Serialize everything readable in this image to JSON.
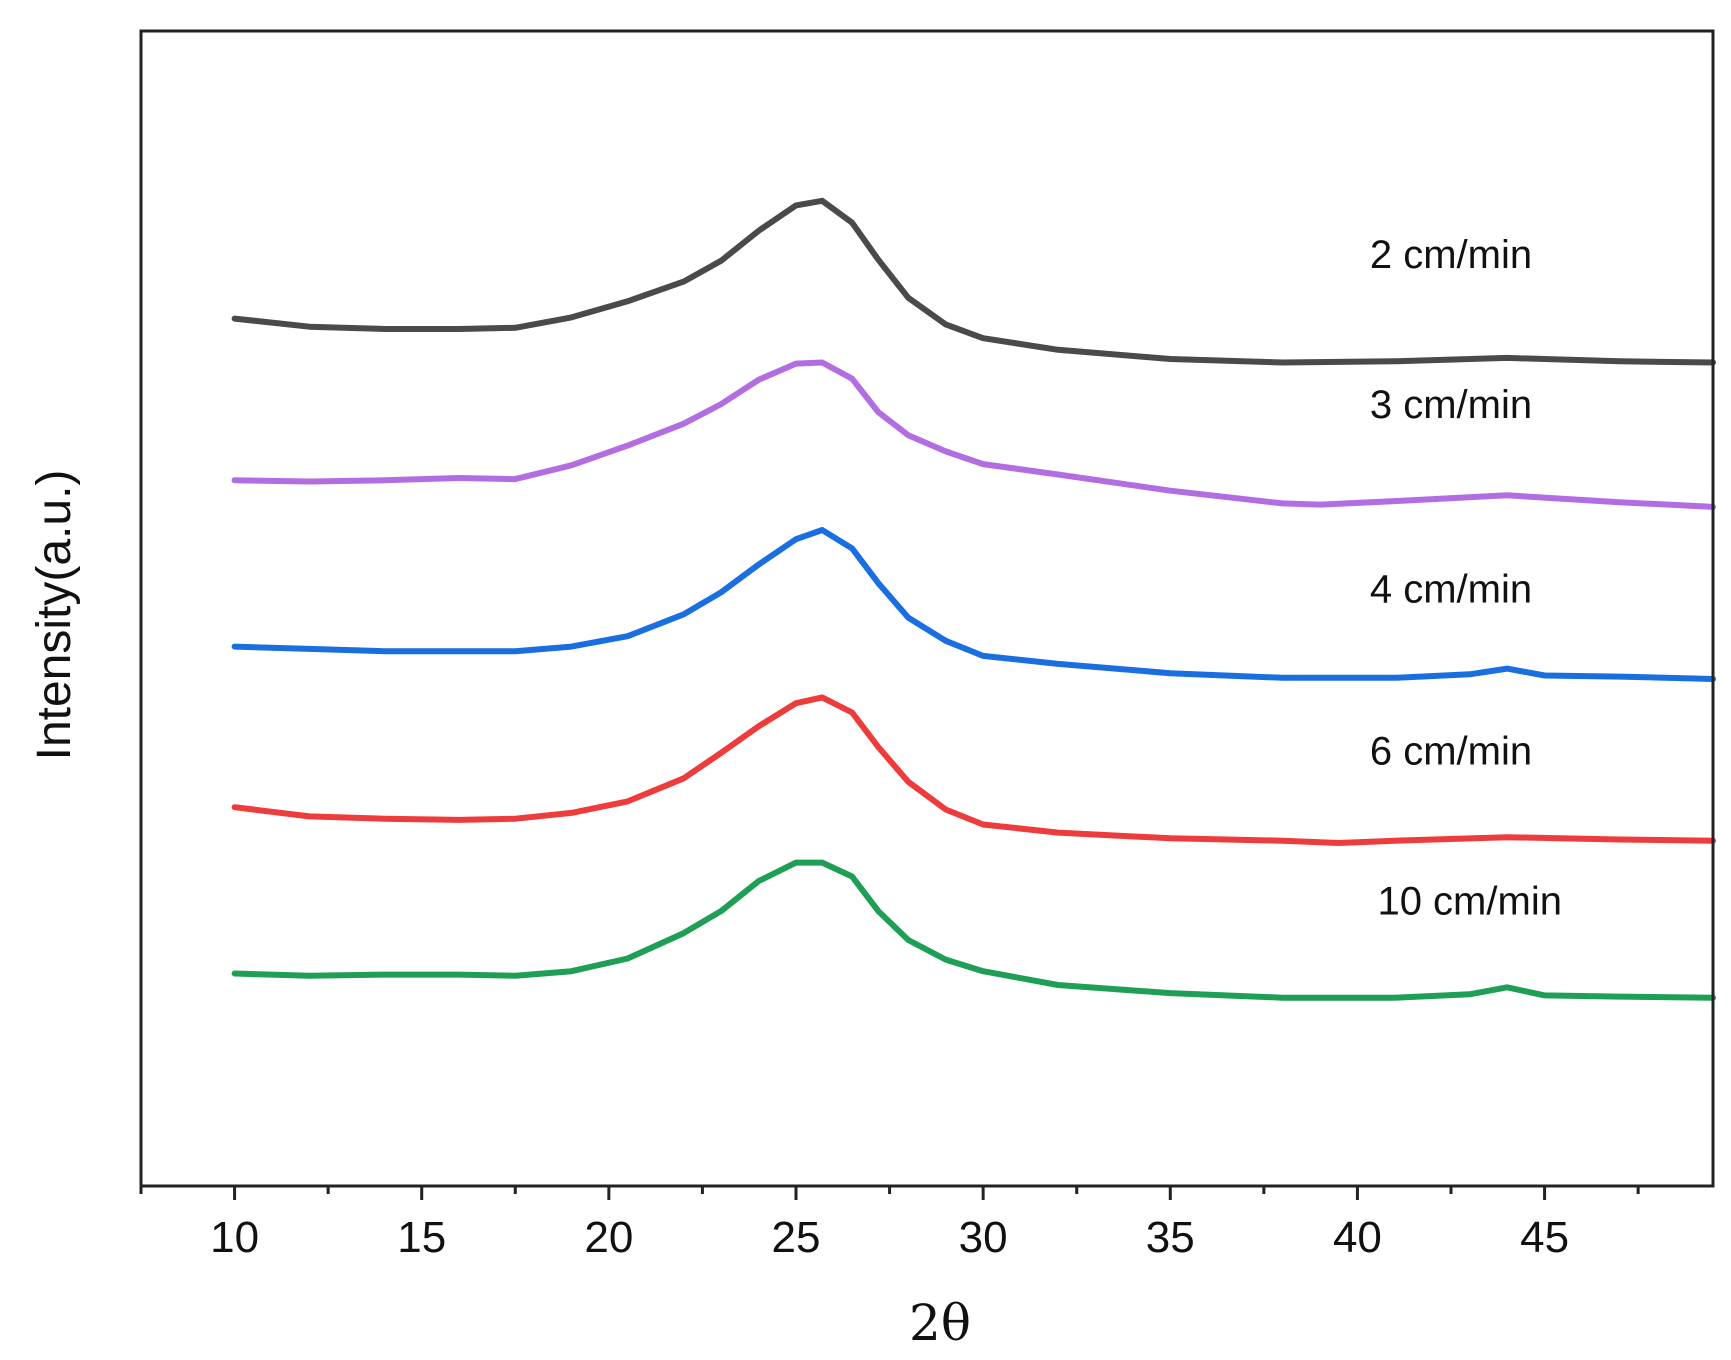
{
  "chart_data": {
    "type": "line",
    "title": "",
    "xlabel": "2θ",
    "ylabel": "Intensity(a.u.)",
    "xlim": [
      7.5,
      49.5
    ],
    "ylim": [
      0,
      100
    ],
    "xticks": [
      10,
      15,
      20,
      25,
      30,
      35,
      40,
      45
    ],
    "xtick_labels": [
      "10",
      "15",
      "20",
      "25",
      "30",
      "35",
      "40",
      "45"
    ],
    "x_minor_step": 2.5,
    "grid": false,
    "y_ticks_shown": false,
    "series": [
      {
        "name": "2 cm/min",
        "color": "#4a4a4a",
        "x": [
          10,
          12,
          14,
          16,
          17.5,
          19,
          20.5,
          22,
          23,
          24,
          25,
          25.7,
          26.5,
          27.2,
          28,
          29,
          30,
          32,
          35,
          38,
          41,
          44,
          47,
          49.5
        ],
        "y": [
          75.1,
          74.4,
          74.2,
          74.2,
          74.3,
          75.2,
          76.6,
          78.3,
          80.1,
          82.7,
          84.9,
          85.3,
          83.4,
          80.2,
          76.9,
          74.6,
          73.4,
          72.4,
          71.6,
          71.3,
          71.4,
          71.7,
          71.4,
          71.3
        ]
      },
      {
        "name": "3 cm/min",
        "color": "#b26ee0",
        "x": [
          10,
          12,
          14,
          16,
          17.5,
          19,
          20.5,
          22,
          23,
          24,
          25,
          25.7,
          26.5,
          27.2,
          28,
          29,
          30,
          32,
          35,
          38,
          39,
          41,
          44,
          47,
          49.5
        ],
        "y": [
          61.1,
          61.0,
          61.1,
          61.3,
          61.2,
          62.4,
          64.1,
          66.0,
          67.7,
          69.8,
          71.2,
          71.3,
          69.9,
          67.0,
          65.0,
          63.6,
          62.5,
          61.6,
          60.2,
          59.1,
          59.0,
          59.3,
          59.8,
          59.2,
          58.8
        ]
      },
      {
        "name": "4 cm/min",
        "color": "#1a6fe0",
        "x": [
          10,
          12,
          14,
          16,
          17.5,
          19,
          20.5,
          22,
          23,
          24,
          25,
          25.7,
          26.5,
          27.2,
          28,
          29,
          30,
          32,
          35,
          38,
          41,
          43,
          44,
          45,
          47,
          49.5
        ],
        "y": [
          46.7,
          46.5,
          46.3,
          46.3,
          46.3,
          46.7,
          47.6,
          49.5,
          51.4,
          53.8,
          56.0,
          56.8,
          55.2,
          52.2,
          49.2,
          47.2,
          45.9,
          45.2,
          44.4,
          44.0,
          44.0,
          44.3,
          44.8,
          44.2,
          44.1,
          43.9
        ]
      },
      {
        "name": "6 cm/min",
        "color": "#ee3b3b",
        "x": [
          10,
          12,
          14,
          16,
          17.5,
          19,
          20.5,
          22,
          23,
          24,
          25,
          25.7,
          26.5,
          27.2,
          28,
          29,
          30,
          32,
          35,
          38,
          39.5,
          41,
          44,
          47,
          49.5
        ],
        "y": [
          32.8,
          32.0,
          31.8,
          31.7,
          31.8,
          32.3,
          33.3,
          35.3,
          37.5,
          39.8,
          41.8,
          42.3,
          41.0,
          38.0,
          35.0,
          32.6,
          31.3,
          30.6,
          30.1,
          29.9,
          29.7,
          29.9,
          30.2,
          30.0,
          29.9
        ]
      },
      {
        "name": "10 cm/min",
        "color": "#1f9e55",
        "x": [
          10,
          12,
          14,
          16,
          17.5,
          19,
          20.5,
          22,
          23,
          24,
          25,
          25.7,
          26.5,
          27.2,
          28,
          29,
          30,
          32,
          35,
          38,
          41,
          43,
          44,
          45,
          47,
          49.5
        ],
        "y": [
          18.4,
          18.2,
          18.3,
          18.3,
          18.2,
          18.6,
          19.7,
          21.9,
          23.8,
          26.4,
          28.0,
          28.0,
          26.8,
          23.8,
          21.3,
          19.6,
          18.6,
          17.4,
          16.7,
          16.3,
          16.3,
          16.6,
          17.2,
          16.5,
          16.4,
          16.3
        ]
      }
    ],
    "annotations": [
      {
        "text": "2 cm/min",
        "x": 42.5,
        "y": 79.5
      },
      {
        "text": "3 cm/min",
        "x": 42.5,
        "y": 66.5
      },
      {
        "text": "4 cm/min",
        "x": 42.5,
        "y": 50.5
      },
      {
        "text": "6 cm/min",
        "x": 42.5,
        "y": 36.5
      },
      {
        "text": "10 cm/min",
        "x": 43.0,
        "y": 23.5
      }
    ]
  }
}
